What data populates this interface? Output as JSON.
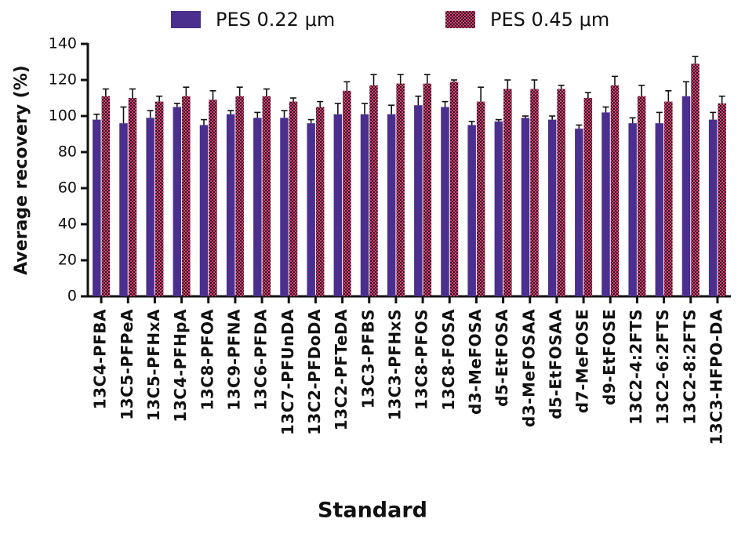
{
  "chart_data": {
    "type": "bar",
    "x_label": "Standard",
    "y_label": "Average recovery (%)",
    "categories": [
      "13C4-PFBA",
      "13C5-PFPeA",
      "13C5-PFHxA",
      "13C4-PFHpA",
      "13C8-PFOA",
      "13C9-PFNA",
      "13C6-PFDA",
      "13C7-PFUnDA",
      "13C2-PFDoDA",
      "13C2-PFTeDA",
      "13C3-PFBS",
      "13C3-PFHxS",
      "13C8-PFOS",
      "13C8-FOSA",
      "d3-MeFOSA",
      "d5-EtFOSA",
      "d3-MeFOSAA",
      "d5-EtFOSAA",
      "d7-MeFOSE",
      "d9-EtFOSE",
      "13C2-4:2FTS",
      "13C2-6:2FTS",
      "13C2-8:2FTS",
      "13C3-HFPO-DA"
    ],
    "series": [
      {
        "name": "PES 0.22 μm",
        "color": "#4b2f8f",
        "values": [
          98,
          96,
          99,
          105,
          95,
          101,
          99,
          99,
          96,
          101,
          101,
          101,
          106,
          105,
          95,
          97,
          99,
          98,
          93,
          102,
          96,
          96,
          111,
          98
        ],
        "errors": [
          3,
          9,
          4,
          2,
          3,
          2,
          3,
          4,
          2,
          6,
          6,
          5,
          5,
          3,
          2,
          1,
          1,
          2,
          2,
          3,
          3,
          6,
          8,
          4
        ]
      },
      {
        "name": "PES 0.45 μm",
        "color": "#e0407a",
        "values": [
          111,
          110,
          108,
          111,
          109,
          111,
          111,
          108,
          105,
          114,
          117,
          118,
          118,
          119,
          108,
          115,
          115,
          115,
          110,
          117,
          111,
          108,
          129,
          107
        ],
        "errors": [
          4,
          5,
          3,
          5,
          5,
          5,
          4,
          2,
          3,
          5,
          6,
          5,
          5,
          1,
          8,
          5,
          5,
          2,
          3,
          5,
          6,
          6,
          4,
          4
        ]
      }
    ],
    "ylim": [
      0,
      140
    ],
    "yticks": [
      0,
      20,
      40,
      60,
      80,
      100,
      120,
      140
    ]
  }
}
